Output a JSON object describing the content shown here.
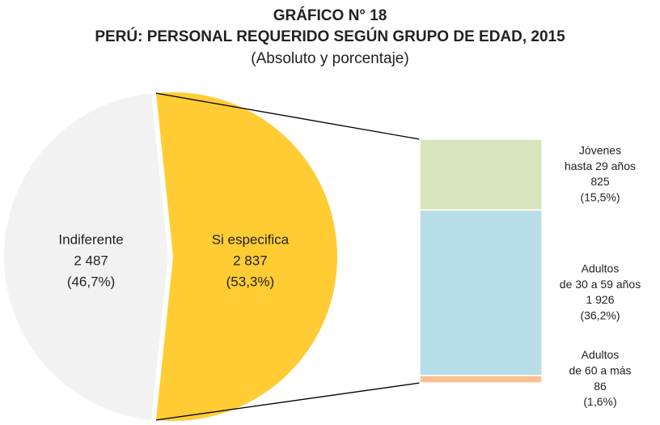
{
  "chart_data": {
    "type": "pie-of-bar",
    "title": "GRÁFICO N° 18",
    "subtitle": "PERÚ: PERSONAL REQUERIDO SEGÚN GRUPO DE EDAD, 2015",
    "note": "(Absoluto y porcentaje)",
    "pie": {
      "names": [
        "Indiferente",
        "Si especifica"
      ],
      "values": [
        2487,
        2837
      ],
      "value_labels": [
        "2 487",
        "2 837"
      ],
      "percents": [
        46.7,
        53.3
      ],
      "percent_labels": [
        "(46,7%)",
        "(53,3%)"
      ],
      "colors": [
        "#f2f2f2",
        "#ffcc33"
      ]
    },
    "bar": {
      "names": [
        [
          "Jóvenes",
          "hasta 29 años"
        ],
        [
          "Adultos",
          "de 30 a 59 años"
        ],
        [
          "Adultos",
          "de 60 a más"
        ]
      ],
      "values": [
        825,
        1926,
        86
      ],
      "value_labels": [
        "825",
        "1 926",
        "86"
      ],
      "percents": [
        15.5,
        36.2,
        1.6
      ],
      "percent_labels": [
        "(15,5%)",
        "(36,2%)",
        "(1,6%)"
      ],
      "colors": [
        "#d8e4bc",
        "#b7dde8",
        "#fac090"
      ]
    }
  }
}
